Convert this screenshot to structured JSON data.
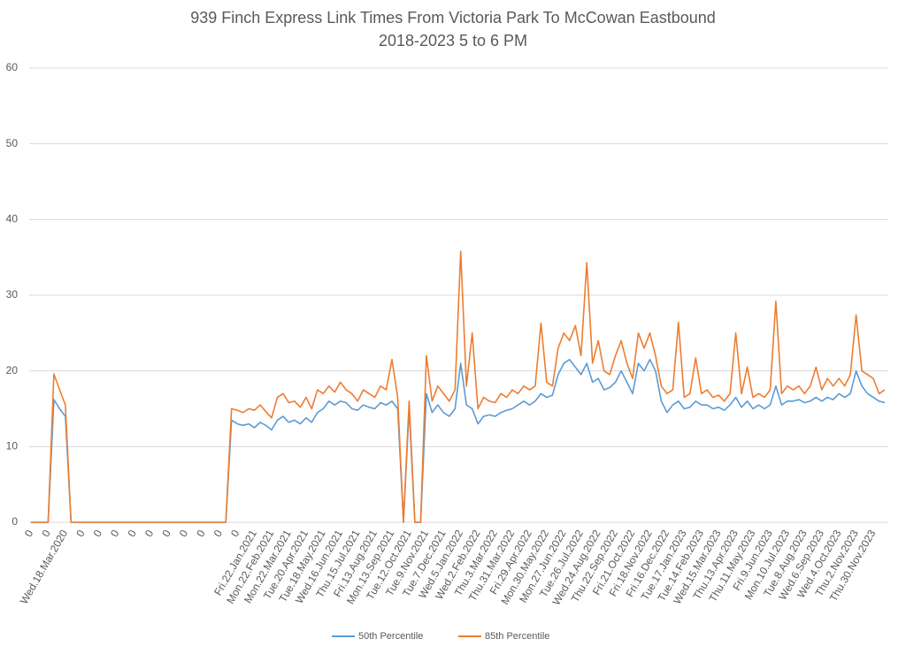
{
  "chart_data": {
    "type": "line",
    "title": "939 Finch Express Link Times From Victoria Park To McCowan Eastbound",
    "subtitle": "2018-2023 5 to 6 PM",
    "categories": [
      "0",
      null,
      null,
      "0",
      null,
      null,
      "Wed.18.Mar.2020",
      null,
      null,
      "0",
      null,
      null,
      "0",
      null,
      null,
      "0",
      null,
      null,
      "0",
      null,
      null,
      "0",
      null,
      null,
      "0",
      null,
      null,
      "0",
      null,
      null,
      "0",
      null,
      null,
      "0",
      null,
      null,
      "0",
      null,
      null,
      "Fri.22.Jan.2021",
      null,
      null,
      "Mon.22.Feb.2021",
      null,
      null,
      "Mon.22.Mar.2021",
      null,
      null,
      "Tue.20.Apr.2021",
      null,
      null,
      "Tue.18.May.2021",
      null,
      null,
      "Wed.16.Jun.2021",
      null,
      null,
      "Thu.15.Jul.2021",
      null,
      null,
      "Fri.13.Aug.2021",
      null,
      null,
      "Mon.13.Sep.2021",
      null,
      null,
      "Tue.12.Oct.2021",
      null,
      null,
      "Tue.9.Nov.2021",
      null,
      null,
      "Tue.7.Dec.2021",
      null,
      null,
      "Wed.5.Jan.2022",
      null,
      null,
      "Wed.2.Feb.2022",
      null,
      null,
      "Thu.3.Mar.2022",
      null,
      null,
      "Thu.31.Mar.2022",
      null,
      null,
      "Fri.29.Apr.2022",
      null,
      null,
      "Mon.30.May.2022",
      null,
      null,
      "Mon.27.Jun.2022",
      null,
      null,
      "Tue.26.Jul.2022",
      null,
      null,
      "Wed.24.Aug.2022",
      null,
      null,
      "Thu.22.Sep.2022",
      null,
      null,
      "Fri.21.Oct.2022",
      null,
      null,
      "Fri.18.Nov.2022",
      null,
      null,
      "Fri.16.Dec.2022",
      null,
      null,
      "Tue.17.Jan.2023",
      null,
      null,
      "Tue.14.Feb.2023",
      null,
      null,
      "Wed.15.Mar.2023",
      null,
      null,
      "Thu.13.Apr.2023",
      null,
      null,
      "Thu.11.May.2023",
      null,
      null,
      "Fri.9.Jun.2023",
      null,
      null,
      "Mon.10.Jul.2023",
      null,
      null,
      "Tue.8.Aug.2023",
      null,
      null,
      "Wed.6.Sep.2023",
      null,
      null,
      "Wed.4.Oct.2023",
      null,
      null,
      "Thu.2.Nov.2023",
      null,
      null,
      "Thu.30.Nov.2023",
      null,
      null
    ],
    "series": [
      {
        "name": "50th Percentile",
        "color": "#5b9bd5",
        "values": [
          0,
          0,
          0,
          0,
          16.2,
          15,
          14,
          0,
          0,
          0,
          0,
          0,
          0,
          0,
          0,
          0,
          0,
          0,
          0,
          0,
          0,
          0,
          0,
          0,
          0,
          0,
          0,
          0,
          0,
          0,
          0,
          0,
          0,
          0,
          0,
          13.5,
          13,
          12.8,
          13,
          12.5,
          13.2,
          12.8,
          12.2,
          13.5,
          14,
          13.2,
          13.5,
          13,
          13.8,
          13.2,
          14.5,
          15,
          16,
          15.5,
          16,
          15.8,
          15,
          14.8,
          15.5,
          15.2,
          15,
          15.8,
          15.5,
          16,
          15,
          0,
          15,
          0,
          0,
          17,
          14.5,
          15.5,
          14.5,
          14,
          15,
          21,
          15.5,
          15,
          13,
          14,
          14.2,
          14,
          14.5,
          14.8,
          15,
          15.5,
          16,
          15.5,
          16,
          17,
          16.5,
          16.8,
          19.5,
          21,
          21.5,
          20.5,
          19.5,
          21,
          18.5,
          19,
          17.5,
          17.8,
          18.5,
          20,
          18.5,
          17,
          21,
          20,
          21.5,
          20,
          16,
          14.5,
          15.5,
          16,
          15,
          15.2,
          16,
          15.5,
          15.5,
          15,
          15.2,
          14.8,
          15.5,
          16.5,
          15.2,
          16,
          15,
          15.5,
          15,
          15.5,
          18,
          15.5,
          16,
          16,
          16.2,
          15.8,
          16,
          16.5,
          16,
          16.5,
          16.2,
          17,
          16.5,
          17,
          20,
          18,
          17,
          16.5,
          16,
          15.8
        ]
      },
      {
        "name": "85th Percentile",
        "color": "#ed7d31",
        "values": [
          0,
          0,
          0,
          0,
          19.6,
          17.5,
          15.5,
          0,
          0,
          0,
          0,
          0,
          0,
          0,
          0,
          0,
          0,
          0,
          0,
          0,
          0,
          0,
          0,
          0,
          0,
          0,
          0,
          0,
          0,
          0,
          0,
          0,
          0,
          0,
          0,
          15,
          14.8,
          14.5,
          15,
          14.8,
          15.5,
          14.6,
          13.8,
          16.5,
          17,
          15.8,
          16,
          15.2,
          16.5,
          15,
          17.5,
          17,
          18,
          17.2,
          18.5,
          17.5,
          17,
          16,
          17.5,
          17,
          16.5,
          18,
          17.5,
          21.5,
          16.5,
          0,
          16,
          0,
          0,
          22,
          16,
          18,
          17,
          16,
          17.5,
          35.8,
          18,
          25,
          15,
          16.5,
          16,
          15.8,
          17,
          16.5,
          17.5,
          17,
          18,
          17.5,
          18,
          26.3,
          18.5,
          18,
          23,
          25,
          24,
          26,
          22,
          34.3,
          21,
          24,
          20,
          19.5,
          22,
          24,
          21,
          19,
          25,
          23,
          25,
          22,
          18,
          17,
          17.5,
          26.4,
          16.5,
          17,
          21.7,
          17,
          17.5,
          16.5,
          16.8,
          16,
          17,
          25,
          17,
          20.5,
          16.5,
          17,
          16.5,
          17.5,
          29.2,
          17,
          18,
          17.5,
          18,
          17,
          18,
          20.5,
          17.5,
          19,
          18,
          19,
          18,
          19.5,
          27.4,
          20,
          19.5,
          19,
          17,
          17.5
        ]
      }
    ],
    "ylim": [
      0,
      60
    ],
    "yticks": [
      0,
      10,
      20,
      30,
      40,
      50,
      60
    ],
    "grid": true,
    "legend": "bottom"
  }
}
